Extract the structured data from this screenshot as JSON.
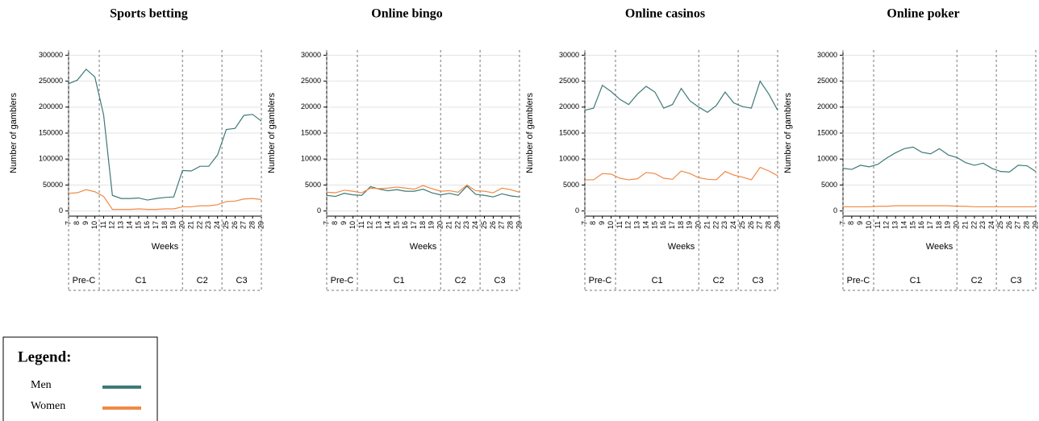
{
  "legend": {
    "title": "Legend:"
  },
  "phases": [
    {
      "label": "Pre-C",
      "from": 7,
      "to": 10.5
    },
    {
      "label": "C1",
      "from": 10.5,
      "to": 20
    },
    {
      "label": "C2",
      "from": 20,
      "to": 24.5
    },
    {
      "label": "C3",
      "from": 24.5,
      "to": 29
    }
  ],
  "chart_data": [
    {
      "type": "line",
      "title": "Sports betting",
      "xlabel": "Weeks",
      "ylabel": "Number of gamblers",
      "x": [
        7,
        8,
        9,
        10,
        11,
        12,
        13,
        14,
        15,
        16,
        17,
        18,
        19,
        20,
        21,
        22,
        23,
        24,
        25,
        26,
        27,
        28,
        29
      ],
      "xlim": [
        7,
        29
      ],
      "ylim": [
        -10000,
        310000
      ],
      "yticks": [
        0,
        50000,
        100000,
        150000,
        200000,
        250000,
        300000
      ],
      "grid": true,
      "series": [
        {
          "name": "Men",
          "color": "#3d7a78",
          "values": [
            245000,
            252000,
            273000,
            258000,
            185000,
            30000,
            24000,
            24000,
            25000,
            21000,
            24000,
            26000,
            27000,
            78000,
            77000,
            86000,
            86000,
            108000,
            157000,
            159000,
            184000,
            186000,
            173000
          ]
        },
        {
          "name": "Women",
          "color": "#f08a45",
          "values": [
            34000,
            35000,
            41000,
            37000,
            28000,
            3000,
            3000,
            3000,
            4000,
            3000,
            3000,
            4000,
            4000,
            8000,
            8000,
            10000,
            10000,
            12000,
            18000,
            19000,
            23000,
            24000,
            22000
          ]
        }
      ]
    },
    {
      "type": "line",
      "title": "Online bingo",
      "xlabel": "Weeks",
      "ylabel": "Number of gamblers",
      "x": [
        7,
        8,
        9,
        10,
        11,
        12,
        13,
        14,
        15,
        16,
        17,
        18,
        19,
        20,
        21,
        22,
        23,
        24,
        25,
        26,
        27,
        28,
        29
      ],
      "xlim": [
        7,
        29
      ],
      "ylim": [
        -1000,
        31000
      ],
      "yticks": [
        0,
        5000,
        10000,
        15000,
        20000,
        25000,
        30000
      ],
      "grid": true,
      "series": [
        {
          "name": "Men",
          "color": "#3d7a78",
          "values": [
            3000,
            2800,
            3400,
            3100,
            3000,
            4700,
            4200,
            3900,
            4100,
            3800,
            3800,
            4200,
            3500,
            3100,
            3400,
            3000,
            4800,
            3200,
            3000,
            2700,
            3300,
            2900,
            2700
          ]
        },
        {
          "name": "Women",
          "color": "#f08a45",
          "values": [
            3600,
            3500,
            4000,
            3800,
            3500,
            4400,
            4300,
            4400,
            4600,
            4400,
            4200,
            4900,
            4300,
            3800,
            3900,
            3600,
            5000,
            3900,
            3800,
            3500,
            4400,
            4100,
            3600
          ]
        }
      ]
    },
    {
      "type": "line",
      "title": "Online casinos",
      "xlabel": "Weeks",
      "ylabel": "Number of gamblers",
      "x": [
        7,
        8,
        9,
        10,
        11,
        12,
        13,
        14,
        15,
        16,
        17,
        18,
        19,
        20,
        21,
        22,
        23,
        24,
        25,
        26,
        27,
        28,
        29
      ],
      "xlim": [
        7,
        29
      ],
      "ylim": [
        -1000,
        31000
      ],
      "yticks": [
        0,
        5000,
        10000,
        15000,
        20000,
        25000,
        30000
      ],
      "grid": true,
      "series": [
        {
          "name": "Men",
          "color": "#3d7a78",
          "values": [
            19400,
            19800,
            24200,
            23000,
            21500,
            20500,
            22500,
            24000,
            22900,
            19800,
            20500,
            23600,
            21200,
            20000,
            19000,
            20300,
            22900,
            20800,
            20100,
            19800,
            25000,
            22500,
            19400
          ]
        },
        {
          "name": "Women",
          "color": "#f08a45",
          "values": [
            6000,
            6000,
            7200,
            7100,
            6300,
            6000,
            6200,
            7400,
            7200,
            6300,
            6100,
            7700,
            7200,
            6400,
            6100,
            6000,
            7600,
            6900,
            6500,
            6000,
            8400,
            7700,
            6800
          ]
        }
      ]
    },
    {
      "type": "line",
      "title": "Online poker",
      "xlabel": "Weeks",
      "ylabel": "Number of gamblers",
      "x": [
        7,
        8,
        9,
        10,
        11,
        12,
        13,
        14,
        15,
        16,
        17,
        18,
        19,
        20,
        21,
        22,
        23,
        24,
        25,
        26,
        27,
        28,
        29
      ],
      "xlim": [
        7,
        29
      ],
      "ylim": [
        -1000,
        31000
      ],
      "yticks": [
        0,
        5000,
        10000,
        15000,
        20000,
        25000,
        30000
      ],
      "grid": true,
      "series": [
        {
          "name": "Men",
          "color": "#3d7a78",
          "values": [
            8200,
            8000,
            8800,
            8500,
            9000,
            10200,
            11200,
            12000,
            12300,
            11300,
            11000,
            12000,
            10800,
            10300,
            9300,
            8800,
            9200,
            8200,
            7600,
            7500,
            8800,
            8700,
            7600
          ]
        },
        {
          "name": "Women",
          "color": "#f08a45",
          "values": [
            800,
            800,
            800,
            800,
            900,
            900,
            1000,
            1000,
            1000,
            1000,
            1000,
            1000,
            1000,
            900,
            900,
            800,
            800,
            800,
            800,
            800,
            800,
            800,
            800
          ]
        }
      ]
    }
  ]
}
